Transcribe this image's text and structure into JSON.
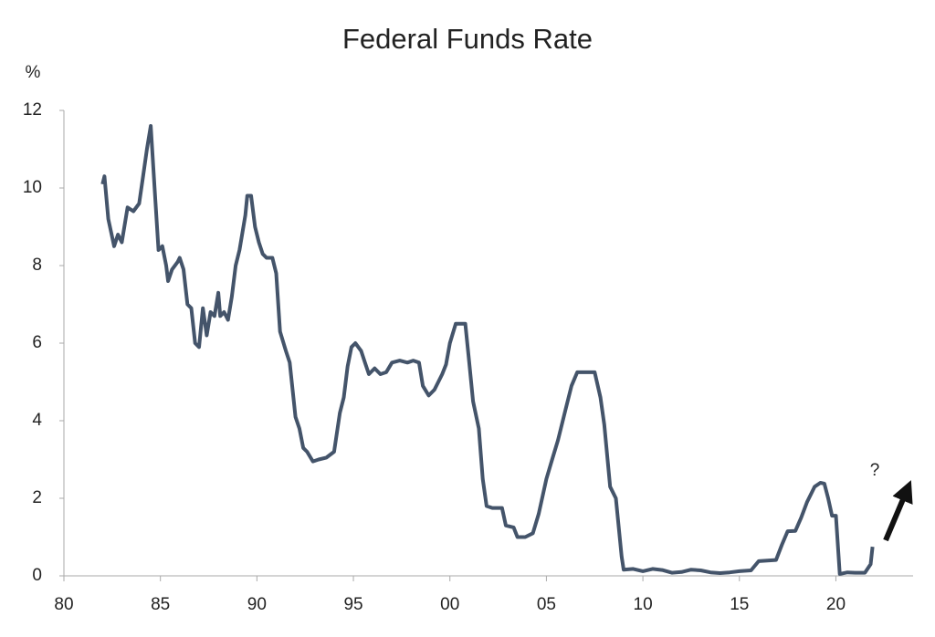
{
  "chart_data": {
    "type": "line",
    "title": "Federal Funds Rate",
    "y_label": "%",
    "annotation": "?",
    "x": [
      1982.0,
      1982.1,
      1982.3,
      1982.6,
      1982.8,
      1983.0,
      1983.3,
      1983.6,
      1983.9,
      1984.1,
      1984.3,
      1984.5,
      1984.7,
      1984.9,
      1985.1,
      1985.3,
      1985.4,
      1985.6,
      1985.9,
      1986.0,
      1986.2,
      1986.4,
      1986.6,
      1986.8,
      1987.0,
      1987.2,
      1987.4,
      1987.6,
      1987.8,
      1988.0,
      1988.1,
      1988.3,
      1988.5,
      1988.7,
      1988.9,
      1989.1,
      1989.4,
      1989.5,
      1989.7,
      1989.9,
      1990.1,
      1990.3,
      1990.5,
      1990.8,
      1991.0,
      1991.2,
      1991.5,
      1991.7,
      1992.0,
      1992.2,
      1992.4,
      1992.6,
      1992.9,
      1993.2,
      1993.6,
      1994.0,
      1994.3,
      1994.5,
      1994.7,
      1994.9,
      1995.1,
      1995.4,
      1995.6,
      1995.8,
      1996.1,
      1996.4,
      1996.7,
      1997.0,
      1997.4,
      1997.8,
      1998.1,
      1998.4,
      1998.6,
      1998.9,
      1999.2,
      1999.6,
      1999.8,
      2000.0,
      2000.3,
      2000.5,
      2000.8,
      2001.0,
      2001.2,
      2001.5,
      2001.7,
      2001.9,
      2002.2,
      2002.7,
      2002.9,
      2003.3,
      2003.5,
      2003.9,
      2004.3,
      2004.6,
      2005.0,
      2005.3,
      2005.6,
      2006.0,
      2006.3,
      2006.6,
      2007.0,
      2007.5,
      2007.8,
      2008.0,
      2008.3,
      2008.6,
      2008.9,
      2009.0,
      2009.5,
      2010.0,
      2010.5,
      2011.0,
      2011.5,
      2012.0,
      2012.5,
      2013.0,
      2013.5,
      2014.0,
      2014.5,
      2015.0,
      2015.6,
      2016.0,
      2016.9,
      2017.2,
      2017.5,
      2017.9,
      2018.2,
      2018.5,
      2018.9,
      2019.2,
      2019.4,
      2019.6,
      2019.8,
      2020.0,
      2020.2,
      2020.6,
      2021.0,
      2021.5,
      2021.8,
      2021.9
    ],
    "series": [
      {
        "color": "#44546a",
        "values": [
          10.1,
          10.3,
          9.2,
          8.5,
          8.8,
          8.6,
          9.5,
          9.4,
          9.6,
          10.3,
          11.0,
          11.6,
          10.0,
          8.4,
          8.5,
          8.0,
          7.6,
          7.9,
          8.1,
          8.2,
          7.9,
          7.0,
          6.9,
          6.0,
          5.9,
          6.9,
          6.2,
          6.8,
          6.7,
          7.3,
          6.7,
          6.8,
          6.6,
          7.2,
          8.0,
          8.4,
          9.3,
          9.8,
          9.8,
          9.0,
          8.6,
          8.3,
          8.2,
          8.2,
          7.8,
          6.3,
          5.8,
          5.5,
          4.1,
          3.8,
          3.3,
          3.2,
          2.95,
          3.0,
          3.05,
          3.2,
          4.2,
          4.6,
          5.4,
          5.9,
          6.0,
          5.8,
          5.5,
          5.2,
          5.35,
          5.2,
          5.25,
          5.5,
          5.55,
          5.5,
          5.55,
          5.5,
          4.9,
          4.65,
          4.8,
          5.2,
          5.45,
          6.0,
          6.5,
          6.5,
          6.5,
          5.5,
          4.5,
          3.8,
          2.5,
          1.8,
          1.75,
          1.75,
          1.3,
          1.25,
          1.0,
          1.0,
          1.1,
          1.6,
          2.5,
          3.0,
          3.5,
          4.3,
          4.9,
          5.25,
          5.25,
          5.25,
          4.6,
          3.9,
          2.3,
          2.0,
          0.5,
          0.16,
          0.18,
          0.12,
          0.18,
          0.15,
          0.08,
          0.1,
          0.16,
          0.14,
          0.09,
          0.07,
          0.09,
          0.12,
          0.14,
          0.38,
          0.41,
          0.8,
          1.15,
          1.16,
          1.5,
          1.9,
          2.3,
          2.4,
          2.38,
          2.0,
          1.55,
          1.55,
          0.05,
          0.09,
          0.08,
          0.08,
          0.3,
          0.75
        ]
      }
    ],
    "xlim": [
      1980,
      2024
    ],
    "xticks": [
      {
        "value": 1980,
        "label": "80"
      },
      {
        "value": 1985,
        "label": "85"
      },
      {
        "value": 1990,
        "label": "90"
      },
      {
        "value": 1995,
        "label": "95"
      },
      {
        "value": 2000,
        "label": "00"
      },
      {
        "value": 2005,
        "label": "05"
      },
      {
        "value": 2010,
        "label": "10"
      },
      {
        "value": 2015,
        "label": "15"
      },
      {
        "value": 2020,
        "label": "20"
      }
    ],
    "ylim": [
      0,
      12
    ],
    "yticks": [
      0,
      2,
      4,
      6,
      8,
      10,
      12
    ],
    "grid": false
  }
}
